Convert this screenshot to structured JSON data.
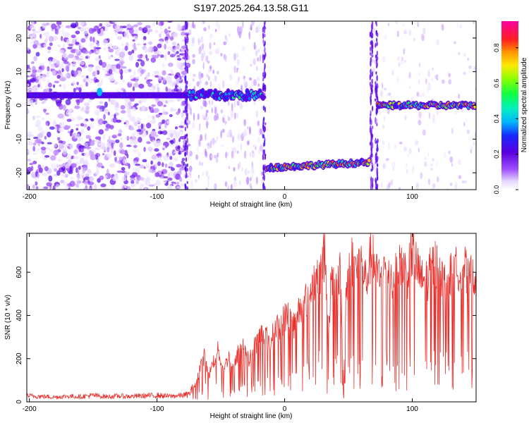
{
  "title": "S197.2025.264.13.58.G11",
  "chart_data": [
    {
      "type": "heatmap",
      "panel": "spectrogram",
      "xlabel": "Height of straight line (km)",
      "ylabel": "Frequency (Hz)",
      "xlim": [
        -202,
        150
      ],
      "ylim": [
        -25,
        25
      ],
      "xticks": [
        -200,
        -100,
        0,
        100
      ],
      "yticks": [
        20,
        10,
        0,
        -10,
        -20
      ],
      "colorbar": {
        "label": "Normalized spectral amplitude",
        "range": [
          0,
          0.95
        ],
        "ticks": [
          0.0,
          0.2,
          0.4,
          0.6,
          0.8
        ]
      },
      "segments": [
        {
          "x_start": -202,
          "x_end": -75,
          "freq_hz": 3,
          "description": "diffuse noise across all frequencies"
        },
        {
          "x_start": -75,
          "x_end": -16,
          "freq_hz": 3,
          "description": "line near +3 Hz"
        },
        {
          "x_start": -14,
          "x_end": 67,
          "freq_hz": -18.5,
          "description": "strong line near -18 Hz"
        },
        {
          "x_start": 73,
          "x_end": 150,
          "freq_hz": 0,
          "description": "strong line near 0 Hz"
        }
      ]
    },
    {
      "type": "line",
      "panel": "snr",
      "xlabel": "Height of straight line (km)",
      "ylabel": "SNR (10 * v/v)",
      "xlim": [
        -202,
        150
      ],
      "ylim": [
        0,
        780
      ],
      "xticks": [
        -200,
        -100,
        0,
        100
      ],
      "yticks": [
        0,
        200,
        400,
        600
      ],
      "color": "#e8302c",
      "series": [
        {
          "name": "SNR",
          "x": [
            -202,
            -190,
            -180,
            -170,
            -160,
            -150,
            -140,
            -130,
            -120,
            -110,
            -100,
            -90,
            -80,
            -75,
            -70,
            -66,
            -62,
            -60,
            -56,
            -52,
            -48,
            -44,
            -40,
            -36,
            -32,
            -28,
            -24,
            -20,
            -16,
            -12,
            -8,
            -4,
            0,
            4,
            8,
            12,
            16,
            20,
            24,
            28,
            32,
            34,
            36,
            40,
            44,
            46,
            48,
            52,
            56,
            60,
            64,
            68,
            72,
            76,
            80,
            84,
            88,
            92,
            96,
            100,
            104,
            108,
            112,
            116,
            120,
            124,
            128,
            132,
            136,
            140,
            144,
            148,
            150
          ],
          "y": [
            28,
            25,
            22,
            26,
            24,
            30,
            24,
            27,
            25,
            28,
            30,
            26,
            30,
            35,
            80,
            180,
            240,
            120,
            200,
            260,
            150,
            230,
            160,
            260,
            300,
            200,
            270,
            320,
            360,
            280,
            360,
            380,
            420,
            440,
            380,
            480,
            500,
            560,
            620,
            640,
            760,
            300,
            560,
            600,
            650,
            40,
            540,
            720,
            660,
            700,
            600,
            750,
            640,
            620,
            700,
            600,
            640,
            700,
            620,
            760,
            660,
            600,
            620,
            680,
            700,
            600,
            640,
            620,
            680,
            700,
            600,
            650,
            640
          ]
        }
      ]
    }
  ]
}
